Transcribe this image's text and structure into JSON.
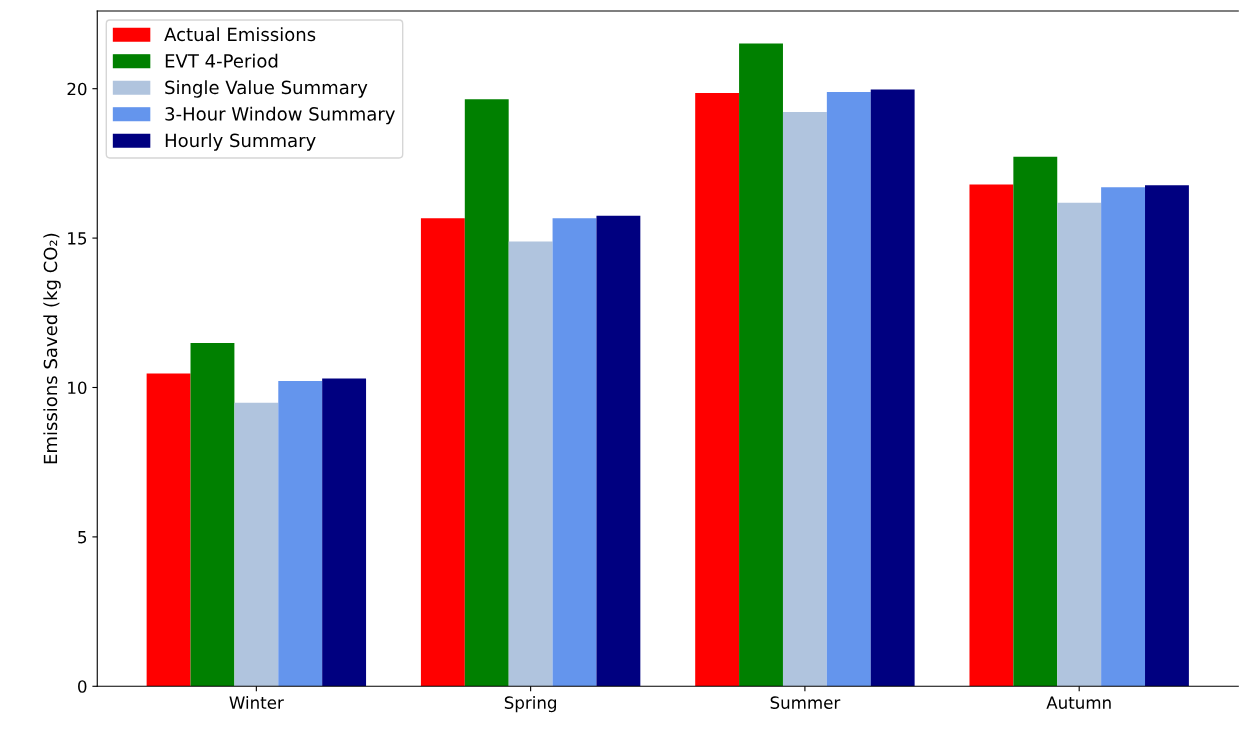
{
  "chart_data": {
    "type": "bar",
    "ylabel": "Emissions Saved (kg CO₂)",
    "categories": [
      "Winter",
      "Spring",
      "Summer",
      "Autumn"
    ],
    "series": [
      {
        "name": "Actual Emissions",
        "color": "#ff0000",
        "values": [
          10.47,
          15.66,
          19.86,
          16.79
        ]
      },
      {
        "name": "EVT 4-Period",
        "color": "#008000",
        "values": [
          11.49,
          19.65,
          21.51,
          17.72
        ]
      },
      {
        "name": "Single Value Summary",
        "color": "#b0c4de",
        "values": [
          9.49,
          14.89,
          19.22,
          16.18
        ]
      },
      {
        "name": "3-Hour Window Summary",
        "color": "#6495ed",
        "values": [
          10.22,
          15.66,
          19.89,
          16.7
        ]
      },
      {
        "name": "Hourly Summary",
        "color": "#000080",
        "values": [
          10.3,
          15.75,
          19.97,
          16.77
        ]
      }
    ],
    "ylim": [
      0,
      22.6
    ],
    "yticks": [
      0,
      5,
      10,
      15,
      20
    ],
    "grid": false,
    "legend": "top left"
  }
}
